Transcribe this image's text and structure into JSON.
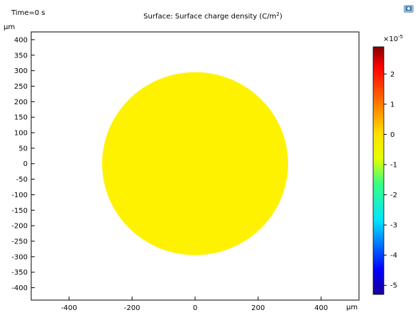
{
  "chart_data": {
    "type": "heatmap",
    "time_label": "Time=0 s",
    "title": "Surface: Surface charge density (C/m",
    "title_sup": "2",
    "title_end": ")",
    "xunit": "μm",
    "yunit": "μm",
    "xlim": [
      -520,
      520
    ],
    "ylim": [
      -440,
      425
    ],
    "xticks": [
      -400,
      -200,
      0,
      200,
      400
    ],
    "yticks": [
      400,
      350,
      300,
      250,
      200,
      150,
      100,
      50,
      0,
      -50,
      -100,
      -150,
      -200,
      -250,
      -300,
      -350,
      -400
    ],
    "shape": {
      "kind": "circle",
      "center": [
        0,
        0
      ],
      "radius": 295,
      "value": 0
    },
    "colorbar": {
      "multiplier": "×10",
      "exponent": "-5",
      "range": [
        -5.3,
        2.9
      ],
      "ticks": [
        2,
        1,
        0,
        -1,
        -2,
        -3,
        -4,
        -5
      ],
      "colormap": "rainbow"
    },
    "shape_color": "#fff200"
  }
}
